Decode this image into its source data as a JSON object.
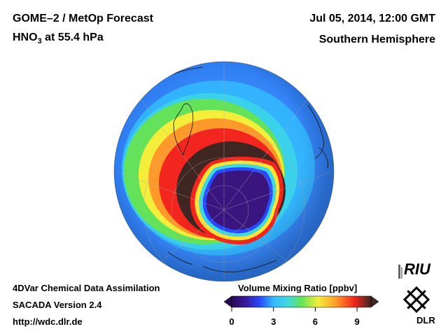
{
  "header": {
    "product": "GOME–2 / MetOp Forecast",
    "species_prefix": "HNO",
    "species_sub": "3",
    "species_suffix": " at 55.4 hPa",
    "datetime": "Jul 05, 2014, 12:00 GMT",
    "region": "Southern Hemisphere"
  },
  "footer": {
    "line1": "4DVar Chemical Data Assimilation",
    "line2": "SACADA Version 2.4",
    "line3": "http://wdc.dlr.de"
  },
  "colorbar": {
    "title": "Volume Mixing Ratio [ppbv]",
    "min": 0,
    "max": 10,
    "ticks": [
      "0",
      "3",
      "6",
      "9"
    ],
    "tick_values": [
      0,
      3,
      6,
      9
    ]
  },
  "logos": {
    "riu": "RIU",
    "dlr": "DLR"
  }
}
